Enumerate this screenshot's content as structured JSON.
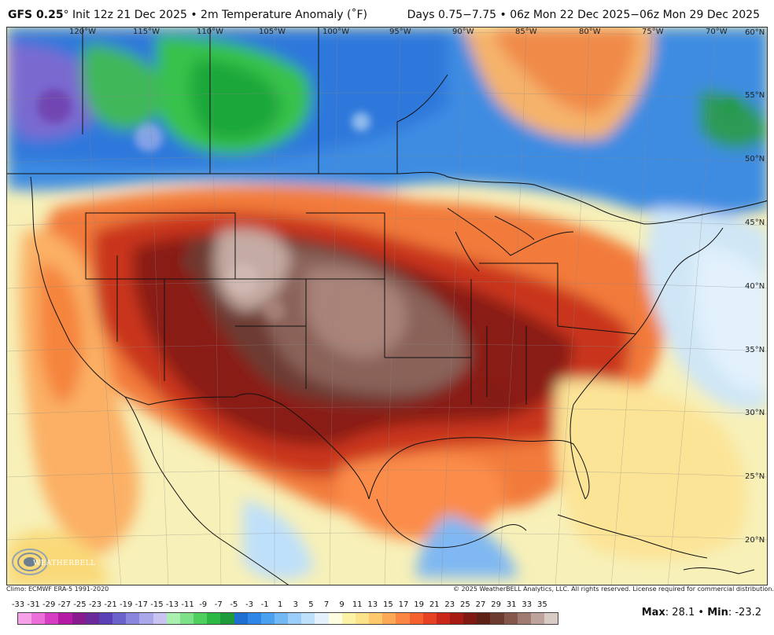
{
  "header": {
    "model": "GFS 0.25",
    "degree": "°",
    "title_rest": " Init 12z 21 Dec 2025 • 2m Temperature Anomaly (˚F)",
    "valid": "Days 0.75−7.75 • 06z Mon 22 Dec 2025−06z Mon 29 Dec 2025"
  },
  "map": {
    "longitude_labels": [
      "120°W",
      "115°W",
      "110°W",
      "105°W",
      "100°W",
      "95°W",
      "90°W",
      "85°W",
      "80°W",
      "75°W",
      "70°W"
    ],
    "latitude_labels": [
      "60°N",
      "55°N",
      "50°N",
      "45°N",
      "40°N",
      "35°N",
      "30°N",
      "25°N",
      "20°N"
    ]
  },
  "footer": {
    "climo": "Climo: ECMWF ERA-5 1991-2020",
    "copyright": "© 2025 WeatherBELL Analytics, LLC. All rights reserved. License required for commercial distribution."
  },
  "legend": {
    "ticks": [
      "-33",
      "-31",
      "-29",
      "-27",
      "-25",
      "-23",
      "-21",
      "-19",
      "-17",
      "-15",
      "-13",
      "-11",
      "-9",
      "-7",
      "-5",
      "-3",
      "-1",
      "1",
      "3",
      "5",
      "7",
      "9",
      "11",
      "13",
      "15",
      "17",
      "19",
      "21",
      "23",
      "25",
      "27",
      "29",
      "31",
      "33",
      "35"
    ],
    "colors": [
      "#f6a0e8",
      "#ec6fd9",
      "#d63dc2",
      "#b51aa5",
      "#8a1b8f",
      "#6a2a9a",
      "#5a3fb5",
      "#6c62cc",
      "#8a86dd",
      "#aaa8ea",
      "#c9c3f2",
      "#a9f0b0",
      "#7fe08a",
      "#4fcf5e",
      "#2db843",
      "#1e9a3a",
      "#1f6fd0",
      "#2e86e6",
      "#4ca0f0",
      "#72b8f5",
      "#9acdf7",
      "#bfe0fa",
      "#e2f1fc",
      "#fffde0",
      "#fbf2a6",
      "#fce28a",
      "#fdc96c",
      "#fca955",
      "#fb8644",
      "#f5612e",
      "#e54122",
      "#c9271a",
      "#a61a12",
      "#7f1a12",
      "#5f2016",
      "#6d3a30",
      "#85564b",
      "#a07a70",
      "#bda39b",
      "#d8cbc6"
    ]
  },
  "stats": {
    "max_label": "Max",
    "max_value": ": 28.1 • ",
    "min_label": "Min",
    "min_value": ": -23.2"
  },
  "logo": {
    "text": "WEATHERBELL"
  }
}
